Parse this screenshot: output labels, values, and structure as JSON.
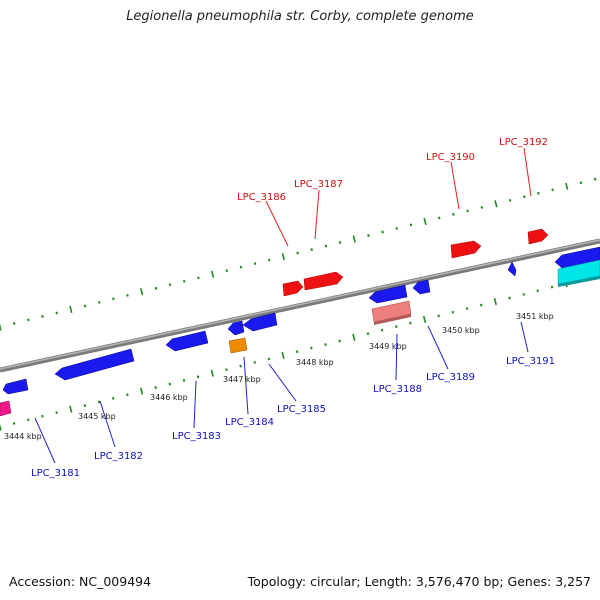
{
  "title": "Legionella pneumophila str. Corby, complete genome",
  "footer": {
    "accession": "Accession: NC_009494",
    "summary": "Topology: circular; Length: 3,576,470 bp; Genes: 3,257"
  },
  "colors": {
    "backbone": "#8c8c8c",
    "forward_gene": "#ee1111",
    "reverse_gene": "#1a1aee",
    "label_forward": "#cc1111",
    "label_reverse": "#1111bb",
    "tick": "#1f8a1f",
    "pink_feature": "#ee7f7f",
    "orange_feature": "#ee8a00",
    "cyan_feature": "#00e5e5",
    "magenta_feature": "#ee1a8a"
  },
  "scale_labels": [
    "3444 kbp",
    "3445 kbp",
    "3446 kbp",
    "3447 kbp",
    "3448 kbp",
    "3449 kbp",
    "3450 kbp",
    "3451 kbp"
  ],
  "gene_labels": {
    "forward": [
      "LPC_3186",
      "LPC_3187",
      "LPC_3190",
      "LPC_3192"
    ],
    "reverse": [
      "LPC_3181",
      "LPC_3182",
      "LPC_3183",
      "LPC_3184",
      "LPC_3185",
      "LPC_3188",
      "LPC_3189",
      "LPC_3191"
    ]
  }
}
